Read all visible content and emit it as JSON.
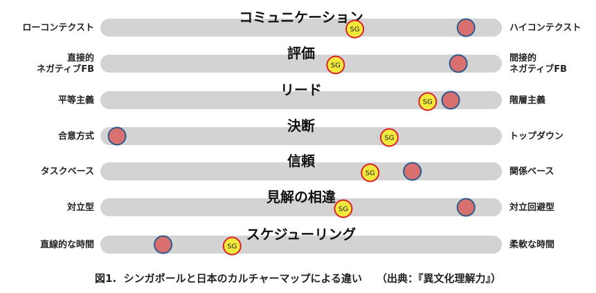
{
  "chart_data": {
    "type": "scatter",
    "xlim": [
      0,
      100
    ],
    "legend": "none",
    "grid": false,
    "markers": {
      "sg_label": "SG",
      "sg_fill": "#f2ea3a",
      "sg_stroke": "#d9202a",
      "other_fill": "#d97070",
      "other_stroke": "#2a5a8c"
    },
    "track_color": "#d3d3d3",
    "rows": [
      {
        "title": "コミュニケーション",
        "left": [
          "ローコンテクスト"
        ],
        "right": [
          "ハイコンテクスト"
        ],
        "sg": 64,
        "other": 93
      },
      {
        "title": "評価",
        "left": [
          "直接的",
          "ネガティブFB"
        ],
        "right": [
          "間接的",
          "ネガティブFB"
        ],
        "sg": 59,
        "other": 91
      },
      {
        "title": "リード",
        "left": [
          "平等主義"
        ],
        "right": [
          "階層主義"
        ],
        "sg": 83,
        "other": 89
      },
      {
        "title": "決断",
        "left": [
          "合意方式"
        ],
        "right": [
          "トップダウン"
        ],
        "sg": 73,
        "other": 2
      },
      {
        "title": "信頼",
        "left": [
          "タスクベース"
        ],
        "right": [
          "関係ベース"
        ],
        "sg": 68,
        "other": 79
      },
      {
        "title": "見解の相違",
        "left": [
          "対立型"
        ],
        "right": [
          "対立回避型"
        ],
        "sg": 61,
        "other": 93
      },
      {
        "title": "スケジューリング",
        "left": [
          "直線的な時間"
        ],
        "right": [
          "柔軟な時間"
        ],
        "sg": 32,
        "other": 14
      }
    ]
  },
  "caption": {
    "figure": "図1.",
    "text": "シンガポールと日本のカルチャーマップによる違い",
    "source": "（出典：『異文化理解力』）"
  }
}
